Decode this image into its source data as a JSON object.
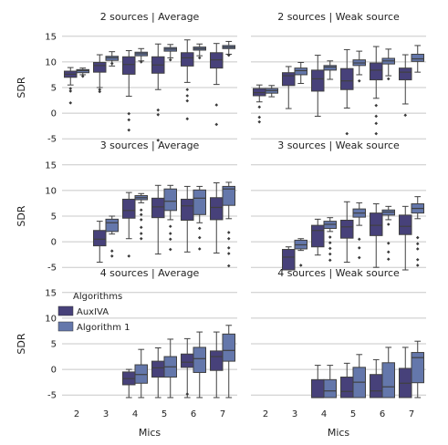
{
  "chart_data": {
    "type": "box",
    "layout": {
      "rows": 3,
      "cols": 2,
      "sharex": true,
      "sharey": true
    },
    "categories": [
      "2",
      "3",
      "4",
      "5",
      "6",
      "7"
    ],
    "xlabel": "Mics",
    "ylabel": "SDR",
    "ylim": [
      -5.5,
      15.5
    ],
    "yticks": [
      "-5",
      "0",
      "5",
      "10",
      "15"
    ],
    "grid": "horizontal",
    "legend": {
      "title": "Algorithms",
      "placement": "inside bottom-left panel, top-left",
      "entries": [
        "AuxIVA",
        "Algorithm 1"
      ]
    },
    "colors": {
      "AuxIVA": "#47417a",
      "Algorithm 1": "#6477ab",
      "grid": "#c8c8c8"
    },
    "panels": [
      {
        "title": "2 sources | Average",
        "series": [
          {
            "name": "AuxIVA",
            "boxes": [
              {
                "x": "2",
                "whislo": 5.5,
                "q1": 7.0,
                "med": 7.6,
                "q3": 8.2,
                "whishi": 8.9,
                "fliers": [
                  4.8,
                  4.3,
                  2.0
                ]
              },
              {
                "x": "3",
                "whislo": 5.0,
                "q1": 8.0,
                "med": 9.3,
                "q3": 9.9,
                "whishi": 11.4,
                "fliers": [
                  4.6,
                  4.2
                ]
              },
              {
                "x": "4",
                "whislo": 3.3,
                "q1": 7.6,
                "med": 9.5,
                "q3": 11.0,
                "whishi": 12.2,
                "fliers": [
                  -0.1,
                  -1.3,
                  -3.3
                ]
              },
              {
                "x": "5",
                "whislo": 4.6,
                "q1": 7.8,
                "med": 9.4,
                "q3": 11.0,
                "whishi": 13.5,
                "fliers": [
                  0.6,
                  -0.3,
                  -5.3
                ]
              },
              {
                "x": "6",
                "whislo": 6.0,
                "q1": 9.2,
                "med": 10.8,
                "q3": 11.8,
                "whishi": 14.3,
                "fliers": [
                  4.6,
                  3.4,
                  2.4,
                  -1.1
                ]
              },
              {
                "x": "7",
                "whislo": 5.6,
                "q1": 8.8,
                "med": 10.4,
                "q3": 11.8,
                "whishi": 13.6,
                "fliers": [
                  1.6,
                  -2.2
                ]
              }
            ]
          },
          {
            "name": "Algorithm 1",
            "boxes": [
              {
                "x": "2",
                "whislo": 7.5,
                "q1": 7.9,
                "med": 8.3,
                "q3": 8.5,
                "whishi": 8.8,
                "fliers": [
                  7.2
                ]
              },
              {
                "x": "3",
                "whislo": 9.2,
                "q1": 10.3,
                "med": 10.8,
                "q3": 11.1,
                "whishi": 12.0,
                "fliers": [
                  9.7
                ]
              },
              {
                "x": "4",
                "whislo": 10.2,
                "q1": 11.2,
                "med": 11.6,
                "q3": 11.9,
                "whishi": 12.6,
                "fliers": [
                  10.0
                ]
              },
              {
                "x": "5",
                "whislo": 10.8,
                "q1": 12.1,
                "med": 12.5,
                "q3": 12.8,
                "whishi": 13.4,
                "fliers": [
                  10.4
                ]
              },
              {
                "x": "6",
                "whislo": 11.2,
                "q1": 12.3,
                "med": 12.6,
                "q3": 12.9,
                "whishi": 13.5,
                "fliers": [
                  10.8
                ]
              },
              {
                "x": "7",
                "whislo": 11.5,
                "q1": 12.6,
                "med": 12.9,
                "q3": 13.2,
                "whishi": 14.0,
                "fliers": [
                  11.3
                ]
              }
            ]
          }
        ]
      },
      {
        "title": "2 sources | Weak source",
        "series": [
          {
            "name": "AuxIVA",
            "boxes": [
              {
                "x": "2",
                "whislo": 2.2,
                "q1": 3.4,
                "med": 4.0,
                "q3": 4.8,
                "whishi": 5.5,
                "fliers": [
                  1.2,
                  -0.8,
                  -1.7
                ]
              },
              {
                "x": "3",
                "whislo": 0.9,
                "q1": 5.4,
                "med": 7.3,
                "q3": 7.9,
                "whishi": 9.1,
                "fliers": []
              },
              {
                "x": "4",
                "whislo": -0.6,
                "q1": 4.3,
                "med": 6.7,
                "q3": 8.4,
                "whishi": 11.3,
                "fliers": []
              },
              {
                "x": "5",
                "whislo": 1.0,
                "q1": 4.6,
                "med": 6.3,
                "q3": 8.7,
                "whishi": 12.4,
                "fliers": [
                  -4.0
                ]
              },
              {
                "x": "6",
                "whislo": 2.9,
                "q1": 6.5,
                "med": 8.4,
                "q3": 9.8,
                "whishi": 13.0,
                "fliers": [
                  1.5,
                  -0.6,
                  -2.0,
                  -4.0
                ]
              },
              {
                "x": "7",
                "whislo": 1.8,
                "q1": 6.5,
                "med": 8.0,
                "q3": 8.8,
                "whishi": 11.4,
                "fliers": [
                  -0.4
                ]
              }
            ]
          },
          {
            "name": "Algorithm 1",
            "boxes": [
              {
                "x": "2",
                "whislo": 3.2,
                "q1": 3.9,
                "med": 4.4,
                "q3": 4.8,
                "whishi": 5.4,
                "fliers": []
              },
              {
                "x": "3",
                "whislo": 5.8,
                "q1": 7.5,
                "med": 8.3,
                "q3": 8.8,
                "whishi": 9.9,
                "fliers": []
              },
              {
                "x": "4",
                "whislo": 6.6,
                "q1": 8.4,
                "med": 9.0,
                "q3": 9.3,
                "whishi": 10.2,
                "fliers": []
              },
              {
                "x": "5",
                "whislo": 7.5,
                "q1": 9.3,
                "med": 9.8,
                "q3": 10.4,
                "whishi": 12.1,
                "fliers": [
                  6.3
                ]
              },
              {
                "x": "6",
                "whislo": 7.3,
                "q1": 9.6,
                "med": 10.2,
                "q3": 10.7,
                "whishi": 12.5,
                "fliers": [
                  6.7
                ]
              },
              {
                "x": "7",
                "whislo": 8.0,
                "q1": 10.1,
                "med": 10.6,
                "q3": 11.5,
                "whishi": 13.2,
                "fliers": []
              }
            ]
          }
        ]
      },
      {
        "title": "3 sources | Average",
        "series": [
          {
            "name": "AuxIVA",
            "boxes": [
              {
                "x": "3",
                "whislo": -4.0,
                "q1": -0.8,
                "med": 0.5,
                "q3": 2.2,
                "whishi": 4.0,
                "fliers": []
              },
              {
                "x": "4",
                "whislo": 0.6,
                "q1": 4.6,
                "med": 6.1,
                "q3": 8.3,
                "whishi": 9.6,
                "fliers": [
                  -2.8
                ]
              },
              {
                "x": "5",
                "whislo": -2.4,
                "q1": 4.7,
                "med": 6.8,
                "q3": 8.5,
                "whishi": 11.0,
                "fliers": []
              },
              {
                "x": "6",
                "whislo": -2.0,
                "q1": 4.2,
                "med": 7.0,
                "q3": 8.3,
                "whishi": 10.8,
                "fliers": []
              },
              {
                "x": "7",
                "whislo": -2.2,
                "q1": 4.3,
                "med": 6.7,
                "q3": 8.6,
                "whishi": 11.5,
                "fliers": []
              }
            ]
          },
          {
            "name": "Algorithm 1",
            "boxes": [
              {
                "x": "3",
                "whislo": 1.5,
                "q1": 2.0,
                "med": 3.7,
                "q3": 4.4,
                "whishi": 5.0,
                "fliers": [
                  -1.8,
                  -2.8
                ]
              },
              {
                "x": "4",
                "whislo": 7.6,
                "q1": 8.2,
                "med": 8.6,
                "q3": 9.0,
                "whishi": 9.4,
                "fliers": [
                  6.2,
                  5.3,
                  4.3,
                  2.8,
                  1.6,
                  0.6
                ]
              },
              {
                "x": "5",
                "whislo": 4.3,
                "q1": 6.1,
                "med": 7.9,
                "q3": 10.3,
                "whishi": 11.0,
                "fliers": [
                  3.0,
                  1.6,
                  0.5,
                  -1.5
                ]
              },
              {
                "x": "6",
                "whislo": 3.7,
                "q1": 5.3,
                "med": 8.5,
                "q3": 10.1,
                "whishi": 10.8,
                "fliers": [
                  2.6,
                  0.8,
                  -1.4
                ]
              },
              {
                "x": "7",
                "whislo": 4.5,
                "q1": 7.1,
                "med": 10.3,
                "q3": 10.8,
                "whishi": 11.6,
                "fliers": [
                  1.8,
                  0.6,
                  -1.2,
                  -2.3,
                  -4.7
                ]
              }
            ]
          }
        ]
      },
      {
        "title": "3 sources | Weak source",
        "series": [
          {
            "name": "AuxIVA",
            "boxes": [
              {
                "x": "3",
                "whislo": -6.0,
                "q1": -5.5,
                "med": -3.0,
                "q3": -1.5,
                "whishi": -1.0,
                "fliers": []
              },
              {
                "x": "4",
                "whislo": -2.6,
                "q1": -1.0,
                "med": 2.2,
                "q3": 3.2,
                "whishi": 4.4,
                "fliers": []
              },
              {
                "x": "5",
                "whislo": -4.0,
                "q1": 0.7,
                "med": 2.9,
                "q3": 4.2,
                "whishi": 7.8,
                "fliers": []
              },
              {
                "x": "6",
                "whislo": -5.0,
                "q1": 1.2,
                "med": 3.2,
                "q3": 5.6,
                "whishi": 7.4,
                "fliers": []
              },
              {
                "x": "7",
                "whislo": -5.5,
                "q1": 1.4,
                "med": 3.0,
                "q3": 5.2,
                "whishi": 6.9,
                "fliers": []
              }
            ]
          },
          {
            "name": "Algorithm 1",
            "boxes": [
              {
                "x": "3",
                "whislo": -1.7,
                "q1": -1.4,
                "med": -0.6,
                "q3": 0.3,
                "whishi": 0.6,
                "fliers": [
                  -4.6
                ]
              },
              {
                "x": "4",
                "whislo": 2.0,
                "q1": 2.6,
                "med": 3.4,
                "q3": 4.0,
                "whishi": 4.7,
                "fliers": [
                  0.9,
                  -0.2,
                  -1.3,
                  -2.4,
                  -3.6
                ]
              },
              {
                "x": "5",
                "whislo": 3.2,
                "q1": 4.8,
                "med": 5.6,
                "q3": 6.4,
                "whishi": 7.6,
                "fliers": [
                  0.5,
                  -1.2,
                  -3.1
                ]
              },
              {
                "x": "6",
                "whislo": 4.3,
                "q1": 5.2,
                "med": 5.8,
                "q3": 6.2,
                "whishi": 6.9,
                "fliers": [
                  3.4,
                  -0.3,
                  -2.0,
                  -3.4
                ]
              },
              {
                "x": "7",
                "whislo": 4.5,
                "q1": 5.6,
                "med": 6.5,
                "q3": 7.4,
                "whishi": 8.8,
                "fliers": [
                  0.8,
                  -0.4,
                  -1.4,
                  -3.5,
                  -4.6
                ]
              }
            ]
          }
        ]
      },
      {
        "title": "4 sources | Average",
        "series": [
          {
            "name": "AuxIVA",
            "boxes": [
              {
                "x": "4",
                "whislo": -5.5,
                "q1": -3.0,
                "med": -1.8,
                "q3": -0.5,
                "whishi": 0.0,
                "fliers": []
              },
              {
                "x": "5",
                "whislo": -5.5,
                "q1": -1.5,
                "med": 0.3,
                "q3": 1.6,
                "whishi": 4.2,
                "fliers": []
              },
              {
                "x": "6",
                "whislo": -5.5,
                "q1": 0.4,
                "med": 1.4,
                "q3": 3.0,
                "whishi": 6.0,
                "fliers": [
                  -4.8
                ]
              },
              {
                "x": "7",
                "whislo": -5.5,
                "q1": -0.2,
                "med": 2.5,
                "q3": 3.6,
                "whishi": 7.3,
                "fliers": []
              }
            ]
          },
          {
            "name": "Algorithm 1",
            "boxes": [
              {
                "x": "4",
                "whislo": -5.5,
                "q1": -2.7,
                "med": -1.0,
                "q3": 0.9,
                "whishi": 3.9,
                "fliers": []
              },
              {
                "x": "5",
                "whislo": -5.5,
                "q1": -1.5,
                "med": 0.5,
                "q3": 2.5,
                "whishi": 5.9,
                "fliers": []
              },
              {
                "x": "6",
                "whislo": -5.5,
                "q1": -0.6,
                "med": 2.1,
                "q3": 4.3,
                "whishi": 7.3,
                "fliers": []
              },
              {
                "x": "7",
                "whislo": -5.5,
                "q1": 1.6,
                "med": 3.7,
                "q3": 6.9,
                "whishi": 8.6,
                "fliers": []
              }
            ]
          }
        ]
      },
      {
        "title": "4 sources | Weak source",
        "series": [
          {
            "name": "AuxIVA",
            "boxes": [
              {
                "x": "4",
                "whislo": -5.5,
                "q1": -5.5,
                "med": -5.5,
                "q3": -2.0,
                "whishi": 0.8,
                "fliers": []
              },
              {
                "x": "5",
                "whislo": -5.5,
                "q1": -5.5,
                "med": -4.3,
                "q3": -1.5,
                "whishi": 1.2,
                "fliers": []
              },
              {
                "x": "6",
                "whislo": -5.5,
                "q1": -5.5,
                "med": -4.2,
                "q3": -1.0,
                "whishi": 1.9,
                "fliers": []
              },
              {
                "x": "7",
                "whislo": -5.5,
                "q1": -5.5,
                "med": -2.7,
                "q3": 0.2,
                "whishi": 4.3,
                "fliers": []
              }
            ]
          },
          {
            "name": "Algorithm 1",
            "boxes": [
              {
                "x": "4",
                "whislo": -5.5,
                "q1": -5.5,
                "med": -4.2,
                "q3": -2.0,
                "whishi": 0.8,
                "fliers": []
              },
              {
                "x": "5",
                "whislo": -5.5,
                "q1": -5.5,
                "med": -2.5,
                "q3": 0.4,
                "whishi": 2.9,
                "fliers": []
              },
              {
                "x": "6",
                "whislo": -5.5,
                "q1": -5.5,
                "med": -3.4,
                "q3": 1.3,
                "whishi": 4.3,
                "fliers": []
              },
              {
                "x": "7",
                "whislo": -5.5,
                "q1": -2.6,
                "med": 2.3,
                "q3": 3.3,
                "whishi": 5.5,
                "fliers": []
              }
            ]
          }
        ]
      }
    ]
  }
}
